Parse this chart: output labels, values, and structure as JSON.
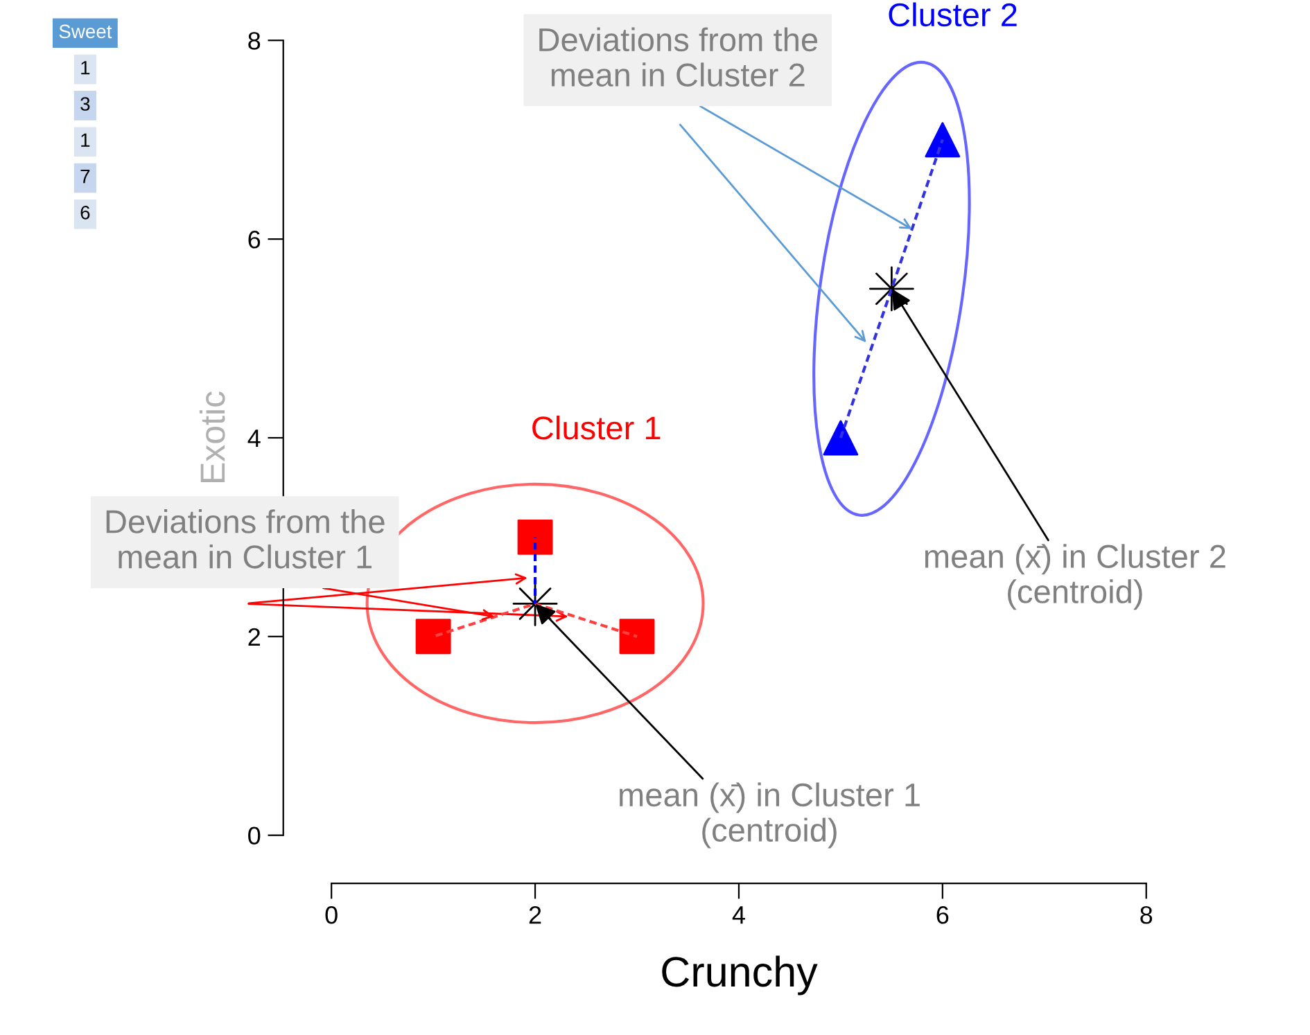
{
  "chart_data": {
    "type": "scatter",
    "xlabel": "Crunchy",
    "ylabel": "Exotic",
    "xlim": [
      0,
      8
    ],
    "ylim": [
      0,
      8
    ],
    "xticks": [
      0,
      2,
      4,
      6,
      8
    ],
    "yticks": [
      0,
      2,
      4,
      6,
      8
    ],
    "grid": false,
    "legend": false,
    "series": [
      {
        "name": "Cluster 1",
        "type": "scatter",
        "marker": "square",
        "color": "#ff0000",
        "x": [
          1,
          2,
          3
        ],
        "values": [
          2,
          3,
          2
        ]
      },
      {
        "name": "Cluster 2",
        "type": "scatter",
        "marker": "triangle",
        "color": "#0000ff",
        "x": [
          5,
          6
        ],
        "values": [
          4,
          7
        ]
      },
      {
        "type": "scatter",
        "marker": "star",
        "color": "#000000",
        "x": [
          2,
          5.5
        ],
        "values": [
          2.33,
          5.5
        ]
      },
      {
        "type": "line",
        "line_style": "dashed",
        "color": "#ff4040",
        "x": [
          1,
          2,
          3
        ],
        "values": [
          2,
          2.33,
          2
        ]
      },
      {
        "type": "line",
        "line_style": "dashed",
        "color": "#0000ff",
        "x": [
          2,
          2
        ],
        "values": [
          3,
          2.33
        ]
      },
      {
        "type": "line",
        "line_style": "dashed",
        "color": "#3333dd",
        "x": [
          5,
          5.5,
          6
        ],
        "values": [
          4,
          5.5,
          7
        ]
      }
    ],
    "annotations": [
      {
        "text": "Deviations from the\nmean in Cluster 2",
        "x": 5.7,
        "y": 6.1
      },
      {
        "text": "Deviations from the\nmean in Cluster 1",
        "x": 1.6,
        "y": 2.2
      },
      {
        "text": "mean (x̄) in Cluster 2\n(centroid)",
        "x": 5.5,
        "y": 5.5
      },
      {
        "text": "mean (x̄) in Cluster 1\n(centroid)",
        "x": 2,
        "y": 2.33
      },
      "Sweet",
      "1",
      "3",
      "1",
      "7",
      "6"
    ]
  }
}
